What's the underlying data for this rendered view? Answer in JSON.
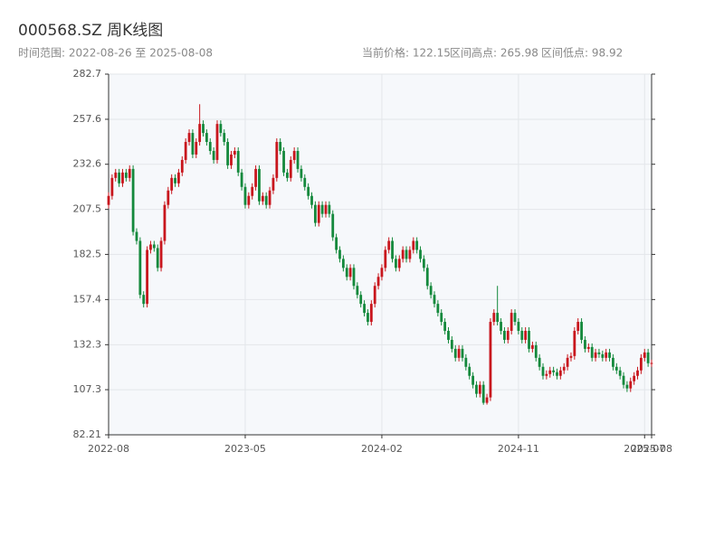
{
  "chart_data": {
    "type": "candlestick",
    "title": "000568.SZ 周K线图",
    "subtitle": "时间范围: 2022-08-26 至 2025-08-08",
    "stats": [
      "当前价格: 122.15",
      "区间高点: 265.98",
      "区间低点: 98.92"
    ],
    "up_color": "#c8161d",
    "down_color": "#14893c",
    "grid": true,
    "ylim": [
      82.21,
      282.7
    ],
    "yticks": [
      82.21,
      107.3,
      132.3,
      157.4,
      182.5,
      207.5,
      232.6,
      257.6,
      282.7
    ],
    "xlim": [
      0,
      155
    ],
    "xticks": [
      {
        "value": 0,
        "label": "2022-08"
      },
      {
        "value": 39,
        "label": "2023-05"
      },
      {
        "value": 78,
        "label": "2024-02"
      },
      {
        "value": 117,
        "label": "2024-11"
      },
      {
        "value": 153,
        "label": "2025-07"
      },
      {
        "value": 155,
        "label": "2025-08"
      }
    ],
    "open": [
      210,
      215,
      225,
      228,
      222,
      228,
      225,
      230,
      195,
      190,
      160,
      155,
      185,
      188,
      186,
      175,
      190,
      210,
      218,
      225,
      222,
      228,
      235,
      245,
      250,
      238,
      245,
      255,
      250,
      245,
      240,
      235,
      255,
      250,
      245,
      232,
      238,
      240,
      228,
      220,
      210,
      215,
      220,
      230,
      212,
      215,
      210,
      218,
      225,
      245,
      240,
      228,
      225,
      235,
      240,
      230,
      225,
      220,
      215,
      210,
      200,
      210,
      205,
      210,
      205,
      192,
      185,
      180,
      175,
      170,
      175,
      165,
      160,
      155,
      150,
      145,
      155,
      165,
      170,
      175,
      185,
      190,
      180,
      175,
      180,
      185,
      180,
      185,
      190,
      185,
      180,
      175,
      165,
      160,
      155,
      150,
      145,
      140,
      135,
      130,
      125,
      130,
      125,
      120,
      115,
      110,
      105,
      110,
      100,
      103,
      145,
      150,
      145,
      140,
      135,
      140,
      150,
      145,
      140,
      135,
      140,
      130,
      132,
      125,
      120,
      115,
      116,
      118,
      117,
      115,
      118,
      120,
      125,
      126,
      140,
      145,
      135,
      130,
      131,
      125,
      128,
      127,
      125,
      128,
      125,
      120,
      118,
      115,
      110,
      108,
      112,
      115,
      118,
      125,
      128,
      122
    ],
    "high": [
      217,
      227,
      230,
      230,
      230,
      230,
      232,
      232,
      197,
      192,
      162,
      187,
      190,
      190,
      188,
      192,
      212,
      220,
      227,
      227,
      230,
      237,
      247,
      252,
      252,
      247,
      265.98,
      257,
      252,
      247,
      242,
      257,
      257,
      252,
      247,
      240,
      242,
      242,
      230,
      222,
      217,
      222,
      232,
      232,
      217,
      217,
      220,
      227,
      247,
      247,
      242,
      230,
      237,
      242,
      242,
      232,
      227,
      222,
      217,
      212,
      212,
      212,
      212,
      212,
      207,
      194,
      187,
      182,
      177,
      177,
      177,
      167,
      162,
      157,
      152,
      157,
      167,
      172,
      177,
      187,
      192,
      192,
      182,
      182,
      187,
      187,
      187,
      192,
      192,
      187,
      182,
      177,
      167,
      162,
      157,
      152,
      147,
      142,
      137,
      132,
      132,
      132,
      127,
      122,
      117,
      112,
      112,
      112,
      105,
      147,
      152,
      165,
      147,
      142,
      142,
      152,
      152,
      147,
      142,
      142,
      142,
      134,
      134,
      127,
      122,
      118,
      120,
      120,
      119,
      120,
      122,
      127,
      128,
      142,
      147,
      147,
      137,
      133,
      133,
      130,
      130,
      129,
      130,
      130,
      127,
      122,
      120,
      117,
      112,
      114,
      117,
      120,
      127,
      130,
      130,
      124
    ],
    "low": [
      208,
      213,
      223,
      220,
      220,
      223,
      223,
      193,
      188,
      158,
      153,
      153,
      183,
      184,
      173,
      173,
      188,
      208,
      216,
      220,
      220,
      226,
      233,
      243,
      236,
      236,
      243,
      248,
      243,
      238,
      233,
      233,
      248,
      243,
      230,
      230,
      236,
      226,
      218,
      208,
      208,
      213,
      218,
      210,
      210,
      208,
      208,
      216,
      223,
      238,
      226,
      223,
      223,
      233,
      228,
      223,
      218,
      213,
      208,
      198,
      198,
      203,
      203,
      203,
      190,
      183,
      178,
      173,
      168,
      168,
      163,
      158,
      153,
      148,
      143,
      143,
      153,
      163,
      168,
      173,
      183,
      178,
      173,
      173,
      178,
      178,
      178,
      183,
      183,
      178,
      173,
      163,
      158,
      153,
      148,
      143,
      138,
      133,
      128,
      123,
      123,
      123,
      118,
      113,
      108,
      103,
      103,
      98.92,
      99,
      101,
      143,
      143,
      138,
      133,
      133,
      138,
      143,
      138,
      133,
      133,
      128,
      128,
      123,
      118,
      113,
      113,
      114,
      115,
      113,
      113,
      116,
      118,
      123,
      124,
      138,
      133,
      128,
      128,
      123,
      123,
      125,
      123,
      123,
      123,
      118,
      116,
      113,
      108,
      106,
      106,
      110,
      113,
      116,
      123,
      120,
      120
    ],
    "close": [
      215,
      225,
      228,
      222,
      228,
      225,
      230,
      195,
      190,
      160,
      155,
      185,
      188,
      186,
      175,
      190,
      210,
      218,
      225,
      222,
      228,
      235,
      245,
      250,
      238,
      245,
      255,
      250,
      245,
      240,
      235,
      255,
      250,
      245,
      232,
      238,
      240,
      228,
      220,
      210,
      215,
      220,
      230,
      212,
      215,
      210,
      218,
      225,
      245,
      240,
      228,
      225,
      235,
      240,
      230,
      225,
      220,
      215,
      210,
      200,
      210,
      205,
      210,
      205,
      192,
      185,
      180,
      175,
      170,
      175,
      165,
      160,
      155,
      150,
      145,
      155,
      165,
      170,
      175,
      185,
      190,
      180,
      175,
      180,
      185,
      180,
      185,
      190,
      185,
      180,
      175,
      165,
      160,
      155,
      150,
      145,
      140,
      135,
      130,
      125,
      130,
      125,
      120,
      115,
      110,
      105,
      110,
      100,
      103,
      145,
      150,
      145,
      140,
      135,
      140,
      150,
      145,
      140,
      135,
      140,
      130,
      132,
      125,
      120,
      115,
      116,
      118,
      117,
      115,
      118,
      120,
      125,
      126,
      140,
      145,
      135,
      130,
      131,
      125,
      128,
      127,
      125,
      128,
      125,
      120,
      118,
      115,
      110,
      108,
      112,
      115,
      118,
      125,
      128,
      122,
      122.15
    ]
  }
}
